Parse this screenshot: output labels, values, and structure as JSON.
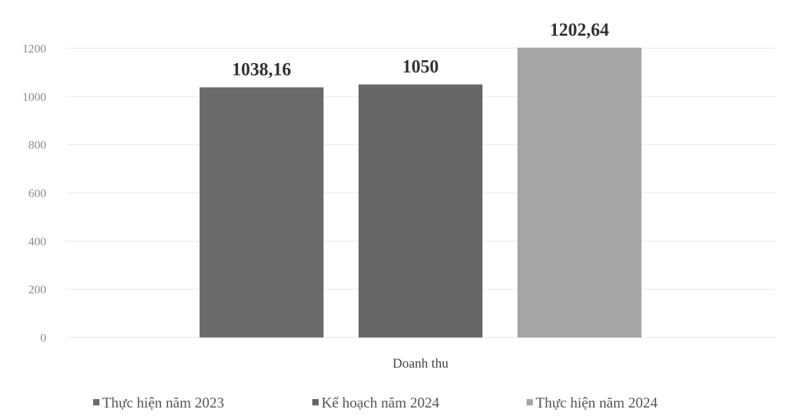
{
  "chart_data": {
    "type": "bar",
    "categories": [
      "Doanh thu"
    ],
    "series": [
      {
        "name": "Thực hiện năm 2023",
        "values": [
          1038.16
        ],
        "label": "1038,16",
        "color": "#6b6b6b"
      },
      {
        "name": "Kế hoạch năm 2024",
        "values": [
          1050
        ],
        "label": "1050",
        "color": "#676767"
      },
      {
        "name": "Thực hiện năm 2024",
        "values": [
          1202.64
        ],
        "label": "1202,64",
        "color": "#a5a5a5"
      }
    ],
    "yticks": [
      "0",
      "200",
      "400",
      "600",
      "800",
      "1000",
      "1200"
    ],
    "ylim": [
      0,
      1200
    ],
    "grid": true,
    "legend_position": "bottom",
    "title": "",
    "xlabel": "",
    "ylabel": ""
  }
}
